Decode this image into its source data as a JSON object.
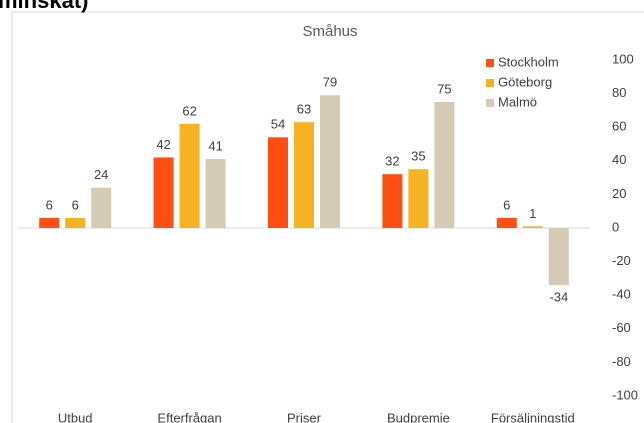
{
  "heading": "minskat)",
  "chart_data": {
    "type": "bar",
    "title": "Småhus",
    "categories": [
      "Utbud",
      "Efterfrågan",
      "Priser",
      "Budpremie",
      "Försäljningstid"
    ],
    "series": [
      {
        "name": "Stockholm",
        "color": "#fd4f12",
        "values": [
          6,
          42,
          54,
          32,
          6
        ]
      },
      {
        "name": "Göteborg",
        "color": "#f5b324",
        "values": [
          6,
          62,
          63,
          35,
          1
        ]
      },
      {
        "name": "Malmö",
        "color": "#d5cab6",
        "values": [
          24,
          41,
          79,
          75,
          -34
        ]
      }
    ],
    "ylim": [
      -100,
      100
    ],
    "yticks": [
      -100,
      -80,
      -60,
      -40,
      -20,
      0,
      20,
      40,
      60,
      80,
      100
    ],
    "grid": false,
    "legend": "top-right",
    "y_axis_side": "right"
  }
}
